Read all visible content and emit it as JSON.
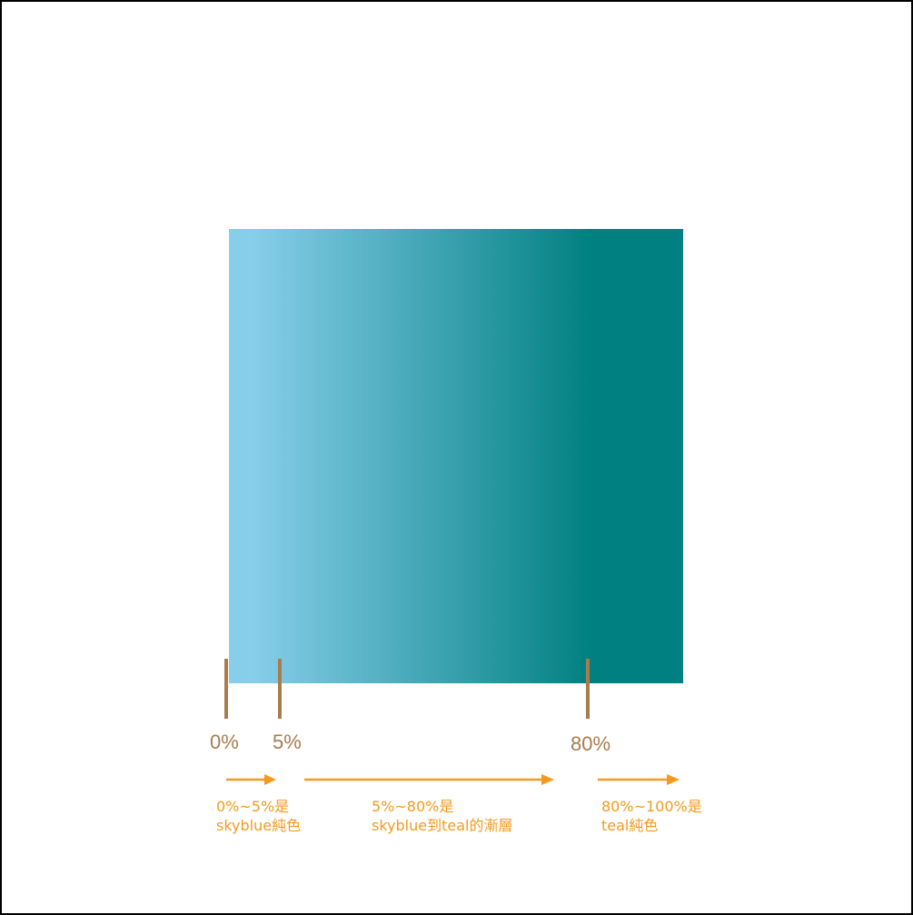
{
  "gradient": {
    "colors": {
      "start": "#87ceeb",
      "end": "#008080"
    },
    "stops": [
      {
        "position_percent": 0,
        "color": "#87ceeb",
        "label": "0%"
      },
      {
        "position_percent": 5,
        "color": "#87ceeb",
        "label": "5%"
      },
      {
        "position_percent": 80,
        "color": "#008080",
        "label": "80%"
      },
      {
        "position_percent": 100,
        "color": "#008080"
      }
    ]
  },
  "accent_color": "#f39a1e",
  "tick_color": "#a87c4d",
  "notes": [
    {
      "line1": "0%~5%是",
      "line2": "skyblue純色"
    },
    {
      "line1": "5%~80%是",
      "line2": "skyblue到teal的漸層"
    },
    {
      "line1": "80%~100%是",
      "line2": "teal純色"
    }
  ]
}
